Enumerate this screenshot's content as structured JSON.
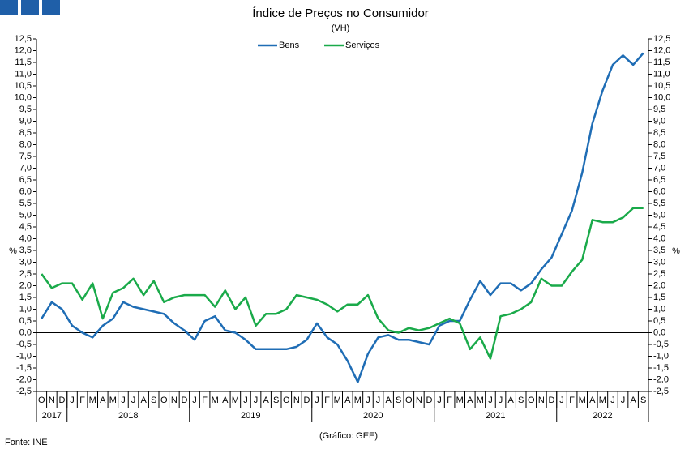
{
  "chart_data": {
    "type": "line",
    "title": "Índice de Preços no Consumidor",
    "subtitle": "(VH)",
    "y_label": "%",
    "y2_label": "%",
    "source": "Fonte: INE",
    "credit": "(Gráfico: GEE)",
    "categories": [
      "O",
      "N",
      "D",
      "J",
      "F",
      "M",
      "A",
      "M",
      "J",
      "J",
      "A",
      "S",
      "O",
      "N",
      "D",
      "J",
      "F",
      "M",
      "A",
      "M",
      "J",
      "J",
      "A",
      "S",
      "O",
      "N",
      "D",
      "J",
      "F",
      "M",
      "A",
      "M",
      "J",
      "J",
      "A",
      "S",
      "O",
      "N",
      "D",
      "J",
      "F",
      "M",
      "A",
      "M",
      "J",
      "J",
      "A",
      "S",
      "O",
      "N",
      "D",
      "J",
      "F",
      "M",
      "A",
      "M",
      "J",
      "J",
      "A",
      "S"
    ],
    "years": [
      "2017",
      "2018",
      "2019",
      "2020",
      "2021",
      "2022"
    ],
    "series": [
      {
        "name": "Bens",
        "color": "#1f6db5",
        "values": [
          0.6,
          1.3,
          1.0,
          0.3,
          0.0,
          -0.2,
          0.3,
          0.6,
          1.3,
          1.1,
          1.0,
          0.9,
          0.8,
          0.4,
          0.1,
          -0.3,
          0.5,
          0.7,
          0.1,
          0.0,
          -0.3,
          -0.7,
          -0.7,
          -0.7,
          -0.7,
          -0.6,
          -0.3,
          0.4,
          -0.2,
          -0.5,
          -1.2,
          -2.1,
          -0.9,
          -0.2,
          -0.1,
          -0.3,
          -0.3,
          -0.4,
          -0.5,
          0.3,
          0.5,
          0.5,
          1.4,
          2.2,
          1.6,
          2.1,
          2.1,
          1.8,
          2.1,
          2.7,
          3.2,
          4.2,
          5.2,
          6.8,
          8.9,
          10.3,
          11.4,
          11.8,
          11.4,
          11.9
        ]
      },
      {
        "name": "Serviços",
        "color": "#1aaa4a",
        "values": [
          2.5,
          1.9,
          2.1,
          2.1,
          1.4,
          2.1,
          0.6,
          1.7,
          1.9,
          2.3,
          1.6,
          2.2,
          1.3,
          1.5,
          1.6,
          1.6,
          1.6,
          1.1,
          1.8,
          1.0,
          1.5,
          0.3,
          0.8,
          0.8,
          1.0,
          1.6,
          1.5,
          1.4,
          1.2,
          0.9,
          1.2,
          1.2,
          1.6,
          0.6,
          0.1,
          0.0,
          0.2,
          0.1,
          0.2,
          0.4,
          0.6,
          0.4,
          -0.7,
          -0.2,
          -1.1,
          0.7,
          0.8,
          1.0,
          1.3,
          2.3,
          2.0,
          2.0,
          2.6,
          3.1,
          4.8,
          4.7,
          4.7,
          4.9,
          5.3,
          5.3
        ]
      }
    ],
    "ylim": [
      -2.5,
      12.5
    ],
    "yticks": [
      {
        "value": -2.5,
        "label": "-2,5"
      },
      {
        "value": -2,
        "label": "-2,0"
      },
      {
        "value": -1.5,
        "label": "-1,5"
      },
      {
        "value": -1,
        "label": "-1,0"
      },
      {
        "value": -0.5,
        "label": "-0,5"
      },
      {
        "value": 0,
        "label": "0,0"
      },
      {
        "value": 0.5,
        "label": "0,5"
      },
      {
        "value": 1,
        "label": "1,0"
      },
      {
        "value": 1.5,
        "label": "1,5"
      },
      {
        "value": 2,
        "label": "2,0"
      },
      {
        "value": 2.5,
        "label": "2,5"
      },
      {
        "value": 3,
        "label": "3,0"
      },
      {
        "value": 3.5,
        "label": "3,5"
      },
      {
        "value": 4,
        "label": "4,0"
      },
      {
        "value": 4.5,
        "label": "4,5"
      },
      {
        "value": 5,
        "label": "5,0"
      },
      {
        "value": 5.5,
        "label": "5,5"
      },
      {
        "value": 6,
        "label": "6,0"
      },
      {
        "value": 6.5,
        "label": "6,5"
      },
      {
        "value": 7,
        "label": "7,0"
      },
      {
        "value": 7.5,
        "label": "7,5"
      },
      {
        "value": 8,
        "label": "8,0"
      },
      {
        "value": 8.5,
        "label": "8,5"
      },
      {
        "value": 9,
        "label": "9,0"
      },
      {
        "value": 9.5,
        "label": "9,5"
      },
      {
        "value": 10,
        "label": "10,0"
      },
      {
        "value": 10.5,
        "label": "10,5"
      },
      {
        "value": 11,
        "label": "11,0"
      },
      {
        "value": 11.5,
        "label": "11,5"
      },
      {
        "value": 12,
        "label": "12,0"
      },
      {
        "value": 12.5,
        "label": "12,5"
      }
    ],
    "y2lim": [
      -2.5,
      12.5
    ],
    "y2ticks": [
      {
        "value": -2.5,
        "label": "-2,5"
      },
      {
        "value": -2,
        "label": "-2,0"
      },
      {
        "value": -1.5,
        "label": "-1,5"
      },
      {
        "value": -1,
        "label": "-1,0"
      },
      {
        "value": -0.5,
        "label": "-0,5"
      },
      {
        "value": 0,
        "label": "0,0"
      },
      {
        "value": 0.5,
        "label": "0,5"
      },
      {
        "value": 1,
        "label": "1,0"
      },
      {
        "value": 1.5,
        "label": "1,5"
      },
      {
        "value": 2,
        "label": "2,0"
      },
      {
        "value": 2.5,
        "label": "2,5"
      },
      {
        "value": 3,
        "label": "3,0"
      },
      {
        "value": 3.5,
        "label": "3,5"
      },
      {
        "value": 4,
        "label": "4,0"
      },
      {
        "value": 4.5,
        "label": "4,5"
      },
      {
        "value": 5,
        "label": "5,0"
      },
      {
        "value": 5.5,
        "label": "5,5"
      },
      {
        "value": 6,
        "label": "6,0"
      },
      {
        "value": 6.5,
        "label": "6,5"
      },
      {
        "value": 7,
        "label": "7,0"
      },
      {
        "value": 7.5,
        "label": "7,5"
      },
      {
        "value": 8,
        "label": "8,0"
      },
      {
        "value": 8.5,
        "label": "8,5"
      },
      {
        "value": 9,
        "label": "9,0"
      },
      {
        "value": 9.5,
        "label": "9,5"
      },
      {
        "value": 10,
        "label": "10,0"
      },
      {
        "value": 10.5,
        "label": "10,5"
      },
      {
        "value": 11,
        "label": "11,0"
      },
      {
        "value": 11.5,
        "label": "11,5"
      },
      {
        "value": 12,
        "label": "12,0"
      },
      {
        "value": 12.5,
        "label": "12,5"
      }
    ],
    "legend": "top"
  }
}
